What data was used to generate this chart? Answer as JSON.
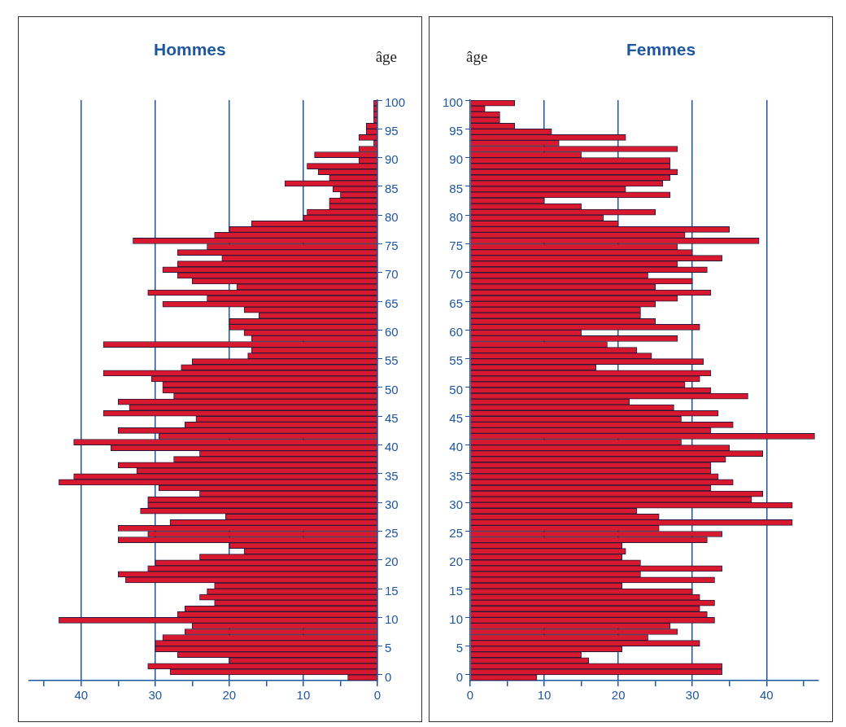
{
  "chart_data": [
    {
      "type": "bar",
      "orientation": "horizontal",
      "title": "Hommes",
      "ylabel": "âge",
      "color": "#d8182f",
      "grid": "x",
      "categories": [
        "100",
        null,
        null,
        null,
        null,
        "95",
        null,
        null,
        null,
        null,
        "90",
        null,
        null,
        null,
        null,
        "85",
        null,
        null,
        null,
        null,
        "80",
        null,
        null,
        null,
        null,
        "75",
        null,
        null,
        null,
        null,
        "70",
        null,
        null,
        null,
        null,
        "65",
        null,
        null,
        null,
        null,
        "60",
        null,
        null,
        null,
        null,
        "55",
        null,
        null,
        null,
        null,
        "50",
        null,
        null,
        null,
        null,
        "45",
        null,
        null,
        null,
        null,
        "40",
        null,
        null,
        null,
        null,
        "35",
        null,
        null,
        null,
        null,
        "30",
        null,
        null,
        null,
        null,
        "25",
        null,
        null,
        null,
        null,
        "20",
        null,
        null,
        null,
        null,
        "15",
        null,
        null,
        null,
        null,
        "10",
        null,
        null,
        null,
        null,
        "5",
        null,
        null,
        null,
        null,
        "0"
      ],
      "values": [
        0.5,
        0.5,
        0.5,
        0.5,
        1.5,
        1.5,
        2.5,
        0.5,
        2.5,
        8.5,
        2.5,
        9.5,
        8,
        6.5,
        12.5,
        6,
        5,
        6.5,
        6.5,
        9.5,
        10,
        17,
        20,
        22,
        33,
        23,
        27,
        21,
        27,
        29,
        27,
        25,
        19,
        31,
        23,
        29,
        18,
        16,
        20,
        20,
        18,
        17,
        37,
        17,
        17.5,
        25,
        26.5,
        37,
        30.5,
        29,
        29,
        27.5,
        35,
        33.5,
        37,
        24.5,
        26,
        35,
        29.5,
        41,
        36,
        24,
        27.5,
        35,
        32.5,
        41,
        43,
        29.5,
        24,
        31,
        31,
        32,
        20.5,
        28,
        35,
        31,
        35,
        20,
        18,
        24,
        30,
        31,
        35,
        34,
        22,
        23,
        24,
        22,
        26,
        27,
        43,
        25,
        26,
        29,
        30,
        30,
        27,
        20,
        31,
        28,
        4
      ],
      "xlim": [
        47,
        0
      ],
      "xticks": [
        0,
        {
          "value": 5,
          "label": null
        },
        10,
        {
          "value": 15,
          "label": null
        },
        20,
        {
          "value": 25,
          "label": null
        },
        30,
        {
          "value": 35,
          "label": null
        },
        40,
        {
          "value": 45,
          "label": null
        }
      ]
    },
    {
      "type": "bar",
      "orientation": "horizontal",
      "title": "Femmes",
      "ylabel": "âge",
      "color": "#d8182f",
      "grid": "x",
      "categories": [
        "100",
        null,
        null,
        null,
        null,
        "95",
        null,
        null,
        null,
        null,
        "90",
        null,
        null,
        null,
        null,
        "85",
        null,
        null,
        null,
        null,
        "80",
        null,
        null,
        null,
        null,
        "75",
        null,
        null,
        null,
        null,
        "70",
        null,
        null,
        null,
        null,
        "65",
        null,
        null,
        null,
        null,
        "60",
        null,
        null,
        null,
        null,
        "55",
        null,
        null,
        null,
        null,
        "50",
        null,
        null,
        null,
        null,
        "45",
        null,
        null,
        null,
        null,
        "40",
        null,
        null,
        null,
        null,
        "35",
        null,
        null,
        null,
        null,
        "30",
        null,
        null,
        null,
        null,
        "25",
        null,
        null,
        null,
        null,
        "20",
        null,
        null,
        null,
        null,
        "15",
        null,
        null,
        null,
        null,
        "10",
        null,
        null,
        null,
        null,
        "5",
        null,
        null,
        null,
        null,
        "0"
      ],
      "values": [
        6,
        2,
        4,
        4,
        6,
        11,
        21,
        12,
        28,
        15,
        27,
        27,
        28,
        27,
        26,
        21,
        27,
        10,
        15,
        25,
        18,
        20,
        35,
        29,
        39,
        28,
        30,
        34,
        28,
        32,
        24,
        30,
        25,
        32.5,
        28,
        25,
        23,
        23,
        25,
        31,
        15,
        28,
        18.5,
        22.5,
        24.5,
        31.5,
        17,
        32.5,
        31,
        29,
        32.5,
        37.5,
        21.5,
        27.5,
        33.5,
        28.5,
        35.5,
        32.5,
        46.5,
        28.5,
        35,
        39.5,
        34.5,
        32.5,
        32.5,
        33.5,
        35.5,
        32.5,
        39.5,
        38,
        43.5,
        22.5,
        25.5,
        43.5,
        25.5,
        34,
        32,
        20.5,
        21,
        20.5,
        23,
        34,
        23,
        33,
        20.5,
        30,
        31,
        33,
        31,
        32,
        33,
        27,
        28,
        24,
        31,
        20.5,
        15,
        16,
        34,
        34,
        9
      ],
      "xlim": [
        0,
        47
      ],
      "xticks": [
        0,
        {
          "value": 5,
          "label": null
        },
        10,
        {
          "value": 15,
          "label": null
        },
        20,
        {
          "value": 25,
          "label": null
        },
        30,
        {
          "value": 35,
          "label": null
        },
        40,
        {
          "value": 45,
          "label": null
        }
      ]
    }
  ]
}
